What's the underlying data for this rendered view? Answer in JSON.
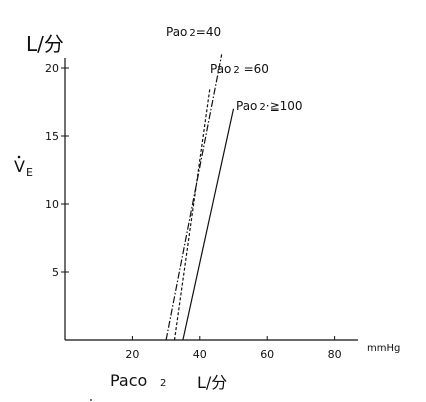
{
  "chart_data": {
    "type": "line",
    "y_axis": {
      "unit_label": "L/分",
      "symbol": "V",
      "symbol_subscript": "E",
      "ticks": [
        5,
        10,
        15,
        20
      ],
      "range": [
        0,
        22
      ]
    },
    "x_axis": {
      "ticks": [
        20,
        40,
        60,
        80
      ],
      "unit": "mmHg",
      "label_main": "Paco",
      "label_sub": "2",
      "label_unit": "L/分",
      "range": [
        0,
        90
      ]
    },
    "series": [
      {
        "name": "Pao₂ =40",
        "style": "dash-dot",
        "x": [
          30,
          46.5
        ],
        "y": [
          0,
          21
        ]
      },
      {
        "name": "Pao₂ =60",
        "style": "dotted",
        "x": [
          32.5,
          43
        ],
        "y": [
          0,
          18.5
        ]
      },
      {
        "name": "Pao₂ ≧100",
        "style": "solid",
        "x": [
          35,
          50
        ],
        "y": [
          0,
          17
        ]
      }
    ],
    "labels": {
      "s40": {
        "main": "Pao",
        "sub": "2",
        "rest": "=40"
      },
      "s60": {
        "main": "Pao",
        "sub": "2",
        "rest": " =60"
      },
      "s100": {
        "main": "Pao",
        "sub": "2",
        "rest": "·≧100"
      }
    }
  }
}
